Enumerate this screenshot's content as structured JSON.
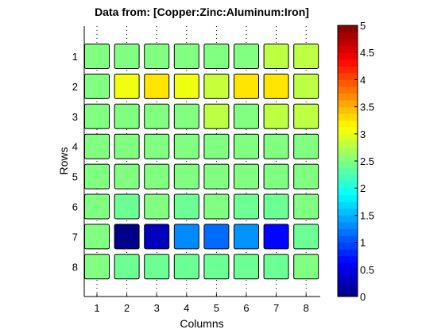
{
  "chart_data": {
    "type": "heatmap",
    "title": "Data from: [Copper:Zinc:Aluminum:Iron]",
    "xlabel": "Columns",
    "ylabel": "Rows",
    "x_ticks": [
      "1",
      "2",
      "3",
      "4",
      "5",
      "6",
      "7",
      "8"
    ],
    "y_ticks": [
      "1",
      "2",
      "3",
      "4",
      "5",
      "6",
      "7",
      "8"
    ],
    "colorbar": {
      "min": 0,
      "max": 5,
      "ticks": [
        "0",
        "0.5",
        "1",
        "1.5",
        "2",
        "2.5",
        "3",
        "3.5",
        "4",
        "4.5",
        "5"
      ],
      "colormap": "jet"
    },
    "values": [
      [
        2.5,
        2.5,
        2.5,
        2.5,
        2.5,
        2.5,
        2.8,
        2.8
      ],
      [
        2.5,
        3.05,
        3.25,
        3.05,
        2.85,
        3.25,
        3.25,
        2.8
      ],
      [
        2.5,
        2.5,
        2.5,
        2.5,
        2.8,
        2.5,
        2.8,
        2.8
      ],
      [
        2.5,
        2.5,
        2.5,
        2.5,
        2.5,
        2.5,
        2.5,
        2.5
      ],
      [
        2.5,
        2.5,
        2.5,
        2.5,
        2.5,
        2.5,
        2.5,
        2.5
      ],
      [
        2.5,
        2.4,
        2.5,
        2.4,
        2.5,
        2.4,
        2.4,
        2.5
      ],
      [
        2.5,
        0.05,
        0.3,
        1.3,
        1.15,
        1.35,
        0.65,
        2.4
      ],
      [
        2.5,
        2.4,
        2.4,
        2.4,
        2.4,
        2.4,
        2.4,
        2.5
      ]
    ]
  }
}
